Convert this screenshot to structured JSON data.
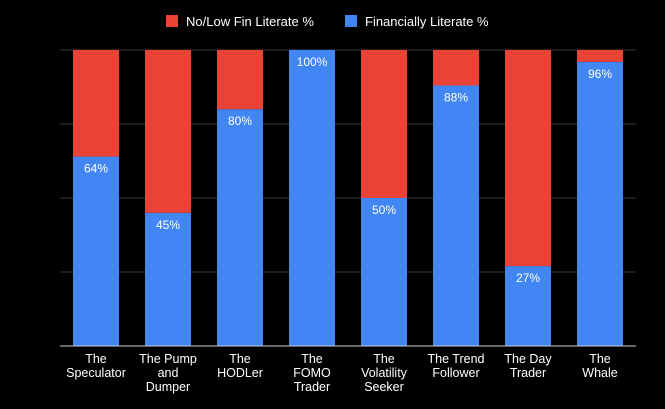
{
  "chart_data": {
    "type": "bar",
    "stacked": true,
    "categories": [
      [
        "The",
        "Speculator"
      ],
      [
        "The Pump",
        "and",
        "Dumper"
      ],
      [
        "The",
        "HODLer"
      ],
      [
        "The",
        "FOMO",
        "Trader"
      ],
      [
        "The",
        "Volatility",
        "Seeker"
      ],
      [
        "The Trend",
        "Follower"
      ],
      [
        "The Day",
        "Trader"
      ],
      [
        "The",
        "Whale"
      ]
    ],
    "series": [
      {
        "name": "Financially Literate %",
        "color": "#4285f4",
        "values": [
          64,
          45,
          80,
          100,
          50,
          88,
          27,
          96
        ],
        "labels": [
          "64%",
          "45%",
          "80%",
          "100%",
          "50%",
          "88%",
          "27%",
          "96%"
        ]
      },
      {
        "name": "No/Low Fin Literate %",
        "color": "#ea4335",
        "values": [
          36,
          55,
          20,
          0,
          50,
          12,
          73,
          4
        ]
      }
    ],
    "legend": {
      "position": "top",
      "order": [
        "No/Low Fin Literate %",
        "Financially Literate %"
      ]
    },
    "ylim": [
      0,
      100
    ],
    "gridlines": [
      0,
      25,
      50,
      75,
      100
    ],
    "grid": true
  }
}
